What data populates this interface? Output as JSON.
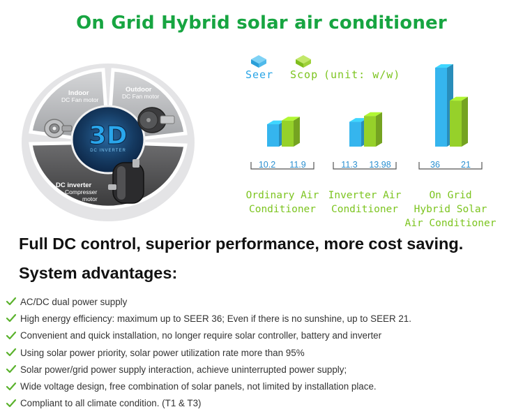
{
  "title": "On Grid Hybrid solar air conditioner",
  "diagram": {
    "indoor_label": "Indoor",
    "indoor_sub": "DC Fan motor",
    "outdoor_label": "Outdoor",
    "outdoor_sub": "DC Fan motor",
    "center_label": "3D",
    "center_sub": "DC INVERTER",
    "inverter_label": "DC inverter",
    "inverter_sub1": "Compresser",
    "inverter_sub2": "motor",
    "colors": {
      "ring_light": "#b9babc",
      "ring_dark": "#4a4a4a",
      "core": "#19426b",
      "accent": "#1d9be0"
    }
  },
  "legend": {
    "seer_label": "Seer",
    "scop_label": "Scop",
    "unit_label": "(unit: w/w)"
  },
  "chart_data": {
    "type": "bar",
    "categories": [
      "Ordinary Air Conditioner",
      "Inverter Air Conditioner",
      "On Grid Hybrid Solar Air Conditioner"
    ],
    "category_lines": [
      [
        "Ordinary Air",
        "Conditioner"
      ],
      [
        "Inverter Air",
        "Conditioner"
      ],
      [
        "On Grid",
        "Hybrid Solar",
        "Air Conditioner"
      ]
    ],
    "series": [
      {
        "name": "Seer",
        "color": "#35b5ee",
        "values": [
          10.2,
          11.3,
          36
        ]
      },
      {
        "name": "Scop",
        "color": "#96d12a",
        "values": [
          11.9,
          13.98,
          21
        ]
      }
    ],
    "value_labels": [
      [
        "10.2",
        "11.9"
      ],
      [
        "11.3",
        "13.98"
      ],
      [
        "36",
        "21"
      ]
    ],
    "title": "",
    "xlabel": "",
    "ylabel": "",
    "ylim": [
      0,
      36
    ],
    "grid": false,
    "legend": "top"
  },
  "headline": "Full DC control, superior performance, more cost saving.",
  "subheading": "System advantages:",
  "advantages": [
    "AC/DC dual power supply",
    "High energy efficiency: maximum up to SEER 36; Even if there is no sunshine, up to SEER 21.",
    "Convenient and quick installation, no longer require solar controller, battery and inverter",
    "Using solar power priority, solar power utilization rate more than 95%",
    "Solar power/grid power supply interaction, achieve uninterrupted power supply;",
    "Wide voltage design, free combination of solar panels, not limited by installation place.",
    "Compliant to all climate condition. (T1 & T3)"
  ],
  "icons": {
    "list_bullet": "check-icon",
    "bullet_color": "#5ab22c"
  },
  "category_text_color": "#7cc41f",
  "value_text_color": "#2a8fd0"
}
